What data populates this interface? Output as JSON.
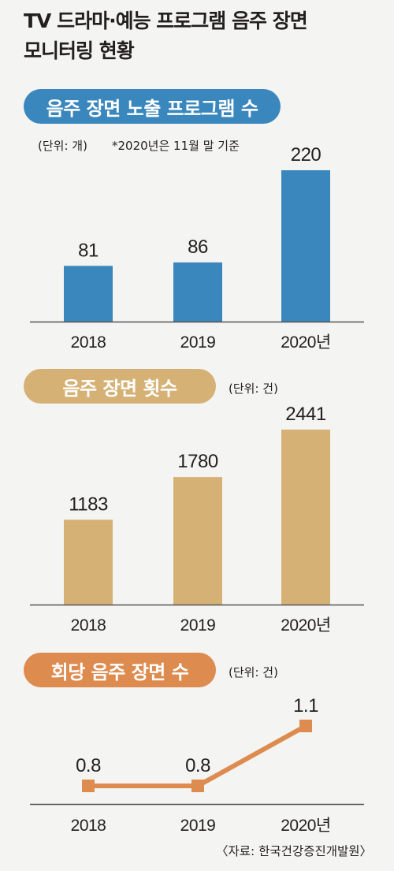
{
  "title": {
    "line1": "TV 드라마·예능 프로그램 음주 장면",
    "line2": "모니터링 현황"
  },
  "source": "〈자료: 한국건강증진개발원〉",
  "colors": {
    "blue": "#3a87bd",
    "gold": "#d6b175",
    "orange": "#dd8b4f",
    "axis": "#555555"
  },
  "chart_data": [
    {
      "type": "bar",
      "title": "음주 장면 노출 프로그램 수",
      "unit_note": "(단위: 개)",
      "footnote": "*2020년은 11월 말 기준",
      "categories": [
        "2018",
        "2019",
        "2020년"
      ],
      "values": [
        81,
        86,
        220
      ],
      "value_labels": [
        "81",
        "86",
        "220"
      ],
      "color": "#3a87bd"
    },
    {
      "type": "bar",
      "title": "음주 장면 횟수",
      "unit_note": "(단위: 건)",
      "categories": [
        "2018",
        "2019",
        "2020년"
      ],
      "values": [
        1183,
        1780,
        2441
      ],
      "value_labels": [
        "1183",
        "1780",
        "2441"
      ],
      "color": "#d6b175"
    },
    {
      "type": "line",
      "title": "회당 음주 장면 수",
      "unit_note": "(단위: 건)",
      "categories": [
        "2018",
        "2019",
        "2020년"
      ],
      "values": [
        0.8,
        0.8,
        1.1
      ],
      "value_labels": [
        "0.8",
        "0.8",
        "1.1"
      ],
      "color": "#dd8b4f"
    }
  ]
}
